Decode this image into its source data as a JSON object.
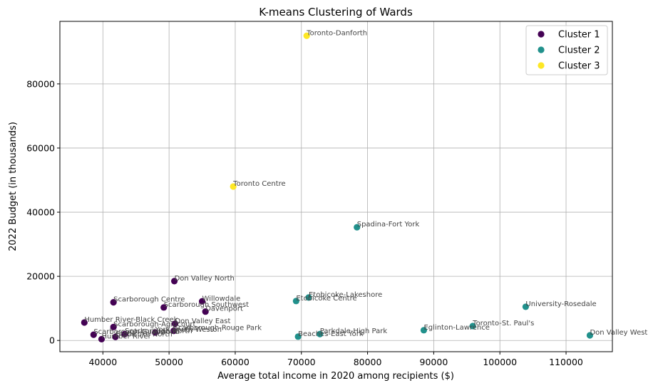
{
  "chart_data": {
    "type": "scatter",
    "title": "K-means Clustering of Wards",
    "xlabel": "Average total income in 2020 among recipients ($)",
    "ylabel": "2022 Budget (in thousands)",
    "xlim": [
      33500,
      117000
    ],
    "ylim": [
      -3500,
      99500
    ],
    "xticks": [
      40000,
      50000,
      60000,
      70000,
      80000,
      90000,
      100000,
      110000
    ],
    "yticks": [
      0,
      20000,
      40000,
      60000,
      80000
    ],
    "grid": true,
    "legend_position": "top-right",
    "legend": [
      {
        "label": "Cluster 1",
        "color": "#440154"
      },
      {
        "label": "Cluster 2",
        "color": "#21918c"
      },
      {
        "label": "Cluster 3",
        "color": "#fde725"
      }
    ],
    "points": [
      {
        "label": "Toronto-Danforth",
        "x": 70800,
        "y": 95000,
        "cluster": 3
      },
      {
        "label": "Toronto Centre",
        "x": 59700,
        "y": 48000,
        "cluster": 3
      },
      {
        "label": "Spadina-Fort York",
        "x": 78400,
        "y": 35300,
        "cluster": 2
      },
      {
        "label": "Etobicoke-Lakeshore",
        "x": 71100,
        "y": 13400,
        "cluster": 2
      },
      {
        "label": "Etobicoke Centre",
        "x": 69200,
        "y": 12300,
        "cluster": 2
      },
      {
        "label": "University-Rosedale",
        "x": 103900,
        "y": 10500,
        "cluster": 2
      },
      {
        "label": "Toronto-St. Paul's",
        "x": 95900,
        "y": 4500,
        "cluster": 2
      },
      {
        "label": "Eglinton-Lawrence",
        "x": 88500,
        "y": 3200,
        "cluster": 2
      },
      {
        "label": "Parkdale-High Park",
        "x": 72800,
        "y": 2000,
        "cluster": 2
      },
      {
        "label": "Beaches-East York",
        "x": 69500,
        "y": 1200,
        "cluster": 2
      },
      {
        "label": "Don Valley West",
        "x": 113600,
        "y": 1600,
        "cluster": 2
      },
      {
        "label": "Don Valley North",
        "x": 50800,
        "y": 18500,
        "cluster": 1
      },
      {
        "label": "Willowdale",
        "x": 55000,
        "y": 12200,
        "cluster": 1
      },
      {
        "label": "Scarborough Centre",
        "x": 41600,
        "y": 11900,
        "cluster": 1
      },
      {
        "label": "Scarborough Southwest",
        "x": 49200,
        "y": 10300,
        "cluster": 1
      },
      {
        "label": "Davenport",
        "x": 55500,
        "y": 9000,
        "cluster": 1
      },
      {
        "label": "Humber River-Black Creek",
        "x": 37200,
        "y": 5600,
        "cluster": 1
      },
      {
        "label": "Don Valley East",
        "x": 50900,
        "y": 5200,
        "cluster": 1
      },
      {
        "label": "Scarborough-Agincourt",
        "x": 41600,
        "y": 4200,
        "cluster": 1
      },
      {
        "label": "Scarborough-Rouge Park",
        "x": 50700,
        "y": 3000,
        "cluster": 1
      },
      {
        "label": "York South-Weston",
        "x": 47900,
        "y": 2500,
        "cluster": 1
      },
      {
        "label": "Scarborough North",
        "x": 43300,
        "y": 2000,
        "cluster": 1
      },
      {
        "label": "Scarborough-Guildwood",
        "x": 38600,
        "y": 1800,
        "cluster": 1
      },
      {
        "label": "Etobicoke North",
        "x": 41900,
        "y": 1100,
        "cluster": 1
      },
      {
        "label": "Humber River",
        "x": 39800,
        "y": 400,
        "cluster": 1
      }
    ]
  }
}
